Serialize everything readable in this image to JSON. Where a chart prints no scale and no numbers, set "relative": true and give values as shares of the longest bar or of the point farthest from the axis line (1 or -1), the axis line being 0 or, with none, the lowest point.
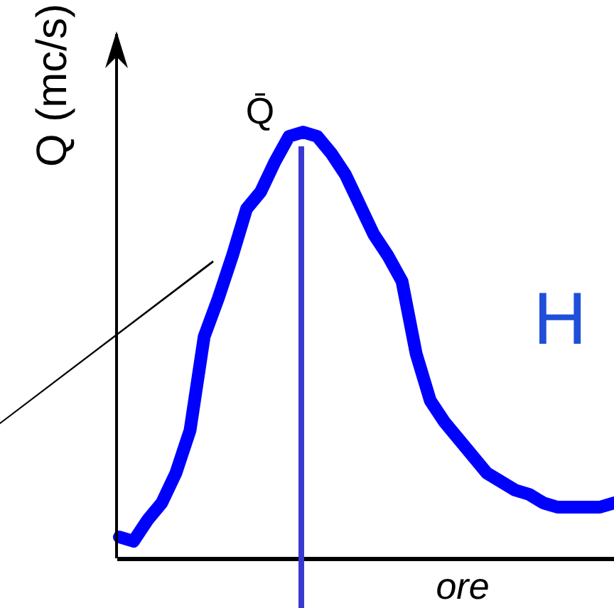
{
  "chart_data": {
    "type": "line",
    "relative": true,
    "ylabel": "Q (mc/s)",
    "xlabel": "ore",
    "categories": [
      null,
      null,
      null,
      null,
      null,
      null,
      null,
      null,
      null,
      null,
      null,
      null,
      null,
      null,
      null,
      null,
      null,
      null,
      null,
      null,
      null,
      null,
      null,
      null,
      null,
      null,
      null,
      null,
      null,
      null,
      null,
      null,
      null,
      null,
      null,
      null
    ],
    "series": [
      {
        "color": "#0000ff",
        "values": [
          0.05,
          0.04,
          0.09,
          0.13,
          0.2,
          0.3,
          0.52,
          0.61,
          0.71,
          0.82,
          0.86,
          0.93,
          0.99,
          1,
          0.99,
          0.95,
          0.9,
          0.83,
          0.76,
          0.71,
          0.65,
          0.48,
          0.37,
          0.32,
          0.28,
          0.24,
          0.2,
          0.18,
          0.16,
          0.15,
          0.13,
          0.12,
          0.12,
          0.12,
          0.12,
          0.13
        ]
      }
    ],
    "annotations": [
      "Q̄",
      "H"
    ],
    "line_style": "solid"
  }
}
